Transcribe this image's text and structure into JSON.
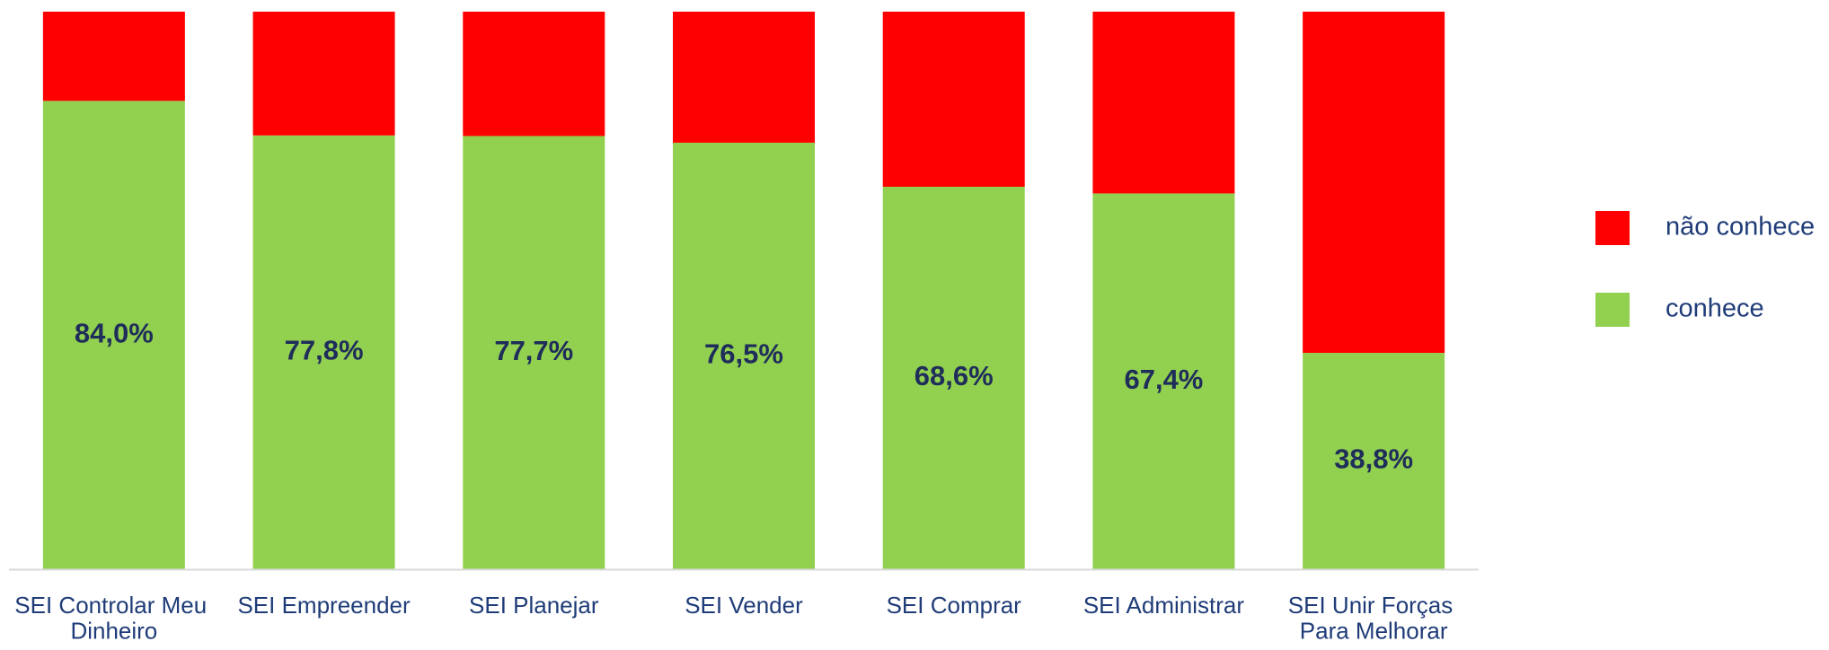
{
  "chart_data": {
    "type": "bar",
    "stacked": true,
    "categories": [
      "SEI Controlar Meu Dinheiro",
      "SEI Empreender",
      "SEI Planejar",
      "SEI Vender",
      "SEI Comprar",
      "SEI Administrar",
      "SEI Unir Forças Para Melhorar"
    ],
    "series": [
      {
        "name": "conhece",
        "color": "#92d050",
        "values": [
          84.0,
          77.8,
          77.7,
          76.5,
          68.6,
          67.4,
          38.8
        ],
        "value_labels": [
          "84,0%",
          "77,8%",
          "77,7%",
          "76,5%",
          "68,6%",
          "67,4%",
          "38,8%"
        ]
      },
      {
        "name": "não conhece",
        "color": "#ff0000",
        "values": [
          16.0,
          22.2,
          22.3,
          23.5,
          31.4,
          32.6,
          61.2
        ]
      }
    ],
    "ylim": [
      0,
      100
    ],
    "legend": "right"
  }
}
